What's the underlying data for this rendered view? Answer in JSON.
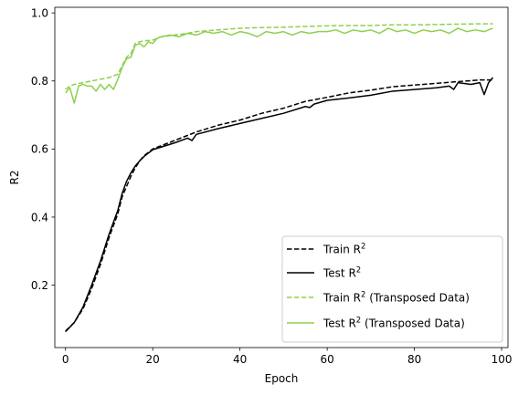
{
  "chart_data": {
    "type": "line",
    "title": "",
    "xlabel": "Epoch",
    "ylabel": "R2",
    "xlim": [
      -2.45,
      101.45
    ],
    "ylim": [
      0.0165,
      1.0165
    ],
    "xticks": [
      0,
      20,
      40,
      60,
      80,
      100
    ],
    "xtick_labels": [
      "0",
      "20",
      "40",
      "60",
      "80",
      "100"
    ],
    "yticks": [
      0.2,
      0.4,
      0.6,
      0.8,
      1.0
    ],
    "ytick_labels": [
      "0.2",
      "0.4",
      "0.6",
      "0.8",
      "1.0"
    ],
    "grid": false,
    "legend_placement": "lower-right",
    "series": [
      {
        "name": "Train R",
        "name_sup": "2",
        "color": "#000000",
        "dash": "dashed",
        "x": [
          0,
          2,
          4,
          6,
          8,
          10,
          12,
          13,
          14,
          15,
          16,
          17,
          18,
          20,
          25,
          30,
          35,
          40,
          45,
          50,
          55,
          60,
          65,
          70,
          75,
          80,
          85,
          90,
          95,
          98
        ],
        "y": [
          0.065,
          0.09,
          0.13,
          0.19,
          0.26,
          0.34,
          0.41,
          0.46,
          0.49,
          0.52,
          0.545,
          0.565,
          0.58,
          0.6,
          0.625,
          0.65,
          0.67,
          0.685,
          0.705,
          0.72,
          0.74,
          0.752,
          0.765,
          0.773,
          0.783,
          0.788,
          0.793,
          0.798,
          0.803,
          0.803
        ]
      },
      {
        "name": "Test R",
        "name_sup": "2",
        "color": "#000000",
        "dash": "solid",
        "x": [
          0,
          2,
          4,
          6,
          8,
          10,
          12,
          13,
          14,
          15,
          16,
          17,
          18,
          20,
          25,
          28,
          29,
          30,
          35,
          40,
          45,
          50,
          55,
          56,
          57,
          60,
          65,
          70,
          75,
          80,
          85,
          88,
          89,
          90,
          93,
          95,
          96,
          97,
          98
        ],
        "y": [
          0.063,
          0.09,
          0.135,
          0.2,
          0.27,
          0.35,
          0.42,
          0.47,
          0.505,
          0.53,
          0.55,
          0.565,
          0.578,
          0.598,
          0.618,
          0.632,
          0.625,
          0.643,
          0.66,
          0.675,
          0.69,
          0.705,
          0.725,
          0.722,
          0.732,
          0.743,
          0.75,
          0.758,
          0.77,
          0.775,
          0.78,
          0.785,
          0.775,
          0.795,
          0.79,
          0.795,
          0.76,
          0.795,
          0.81
        ]
      },
      {
        "name": "Train R",
        "name_sup": "2",
        "name_suffix": " (Transposed Data)",
        "color": "#8ed04f",
        "dash": "dashed",
        "x": [
          0,
          1,
          2,
          4,
          6,
          8,
          10,
          12,
          14,
          15,
          16,
          17,
          18,
          20,
          22,
          25,
          28,
          30,
          35,
          40,
          45,
          50,
          55,
          60,
          65,
          70,
          75,
          80,
          85,
          90,
          95,
          98
        ],
        "y": [
          0.775,
          0.785,
          0.79,
          0.795,
          0.8,
          0.805,
          0.81,
          0.82,
          0.87,
          0.88,
          0.91,
          0.915,
          0.918,
          0.92,
          0.93,
          0.935,
          0.94,
          0.945,
          0.95,
          0.955,
          0.957,
          0.958,
          0.96,
          0.962,
          0.963,
          0.963,
          0.965,
          0.965,
          0.966,
          0.967,
          0.968,
          0.968
        ]
      },
      {
        "name": "Test R",
        "name_sup": "2",
        "name_suffix": " (Transposed Data)",
        "color": "#8ed04f",
        "dash": "solid",
        "x": [
          0,
          1,
          2,
          3,
          4,
          5,
          6,
          7,
          8,
          9,
          10,
          11,
          12,
          13,
          14,
          15,
          16,
          17,
          18,
          19,
          20,
          21,
          22,
          24,
          26,
          28,
          30,
          32,
          34,
          36,
          38,
          40,
          42,
          44,
          46,
          48,
          50,
          52,
          54,
          56,
          58,
          60,
          62,
          64,
          66,
          68,
          70,
          72,
          74,
          76,
          78,
          80,
          82,
          84,
          86,
          88,
          90,
          92,
          94,
          96,
          98
        ],
        "y": [
          0.765,
          0.78,
          0.735,
          0.785,
          0.79,
          0.785,
          0.785,
          0.77,
          0.79,
          0.775,
          0.79,
          0.775,
          0.805,
          0.84,
          0.865,
          0.87,
          0.905,
          0.91,
          0.9,
          0.915,
          0.91,
          0.925,
          0.93,
          0.935,
          0.93,
          0.94,
          0.935,
          0.945,
          0.94,
          0.945,
          0.935,
          0.945,
          0.94,
          0.93,
          0.945,
          0.94,
          0.945,
          0.935,
          0.945,
          0.94,
          0.945,
          0.945,
          0.95,
          0.94,
          0.95,
          0.945,
          0.95,
          0.94,
          0.955,
          0.945,
          0.95,
          0.94,
          0.95,
          0.945,
          0.95,
          0.94,
          0.955,
          0.945,
          0.95,
          0.945,
          0.955
        ]
      }
    ]
  }
}
